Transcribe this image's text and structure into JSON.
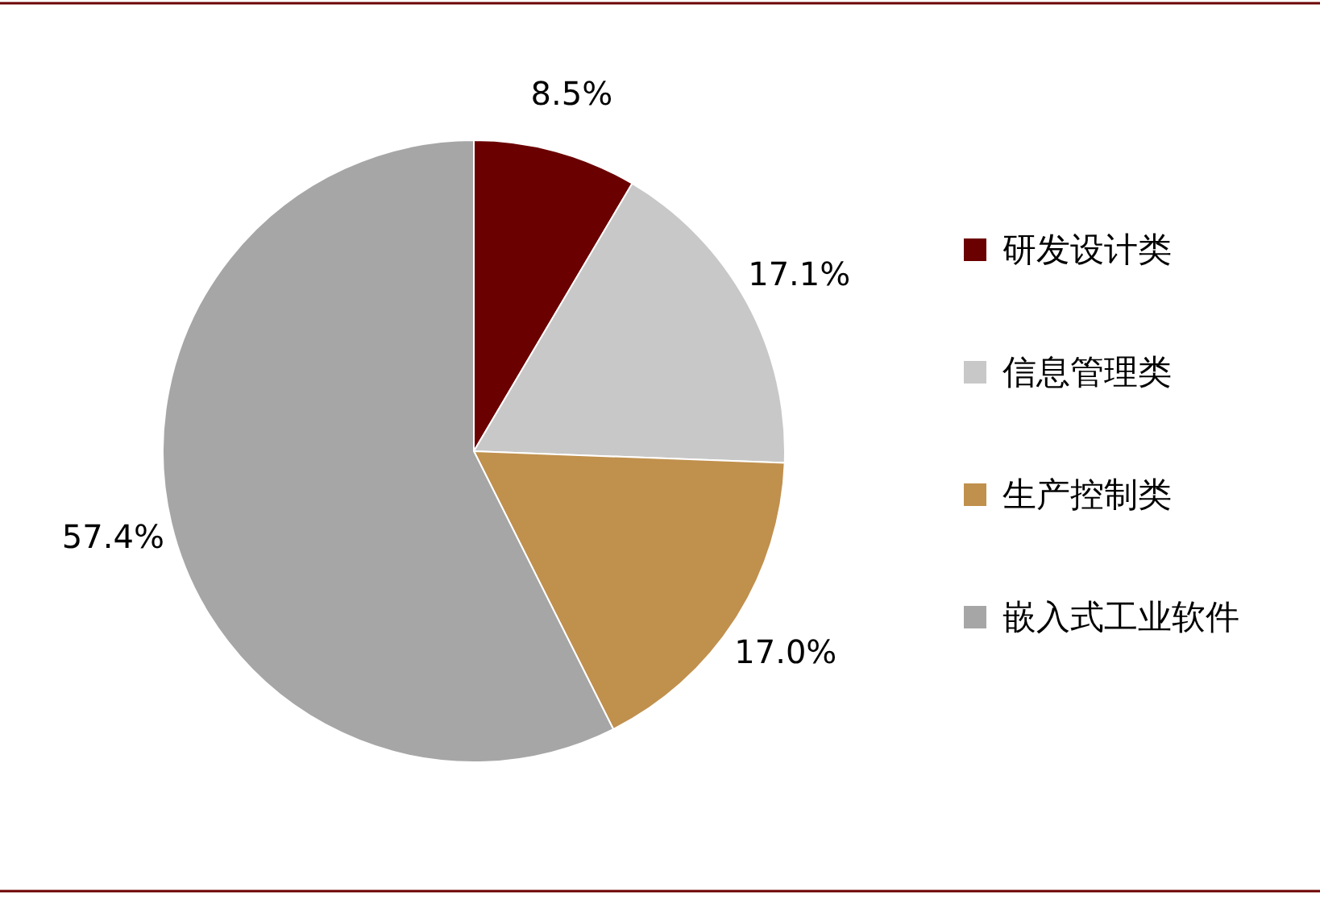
{
  "chart_data": {
    "type": "pie",
    "categories": [
      "研发设计类",
      "信息管理类",
      "生产控制类",
      "嵌入式工业软件"
    ],
    "values": [
      8.5,
      17.1,
      17.0,
      57.4
    ],
    "colors": [
      "#6b0000",
      "#c8c8c8",
      "#c0904d",
      "#a6a6a6"
    ],
    "value_labels": [
      "8.5%",
      "17.1%",
      "17.0%",
      "57.4%"
    ],
    "legend": "right"
  }
}
